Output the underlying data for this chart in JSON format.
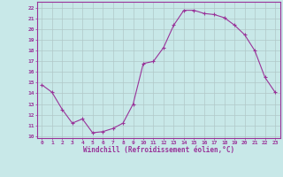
{
  "x": [
    0,
    1,
    2,
    3,
    4,
    5,
    6,
    7,
    8,
    9,
    10,
    11,
    12,
    13,
    14,
    15,
    16,
    17,
    18,
    19,
    20,
    21,
    22,
    23
  ],
  "y": [
    14.8,
    14.1,
    12.5,
    11.2,
    11.6,
    10.3,
    10.4,
    10.7,
    11.2,
    13.0,
    16.8,
    17.0,
    18.3,
    20.4,
    21.8,
    21.8,
    21.5,
    21.4,
    21.1,
    20.4,
    19.5,
    18.0,
    15.5,
    14.1
  ],
  "line_color": "#993399",
  "marker": "+",
  "marker_color": "#993399",
  "bg_color": "#c8e8e8",
  "grid_color": "#b0c8c8",
  "xlabel": "Windchill (Refroidissement éolien,°C)",
  "xlabel_color": "#993399",
  "tick_color": "#993399",
  "ylim": [
    9.8,
    22.6
  ],
  "xlim": [
    -0.5,
    23.5
  ],
  "yticks": [
    10,
    11,
    12,
    13,
    14,
    15,
    16,
    17,
    18,
    19,
    20,
    21,
    22
  ],
  "xticks": [
    0,
    1,
    2,
    3,
    4,
    5,
    6,
    7,
    8,
    9,
    10,
    11,
    12,
    13,
    14,
    15,
    16,
    17,
    18,
    19,
    20,
    21,
    22,
    23
  ],
  "border_color": "#993399"
}
